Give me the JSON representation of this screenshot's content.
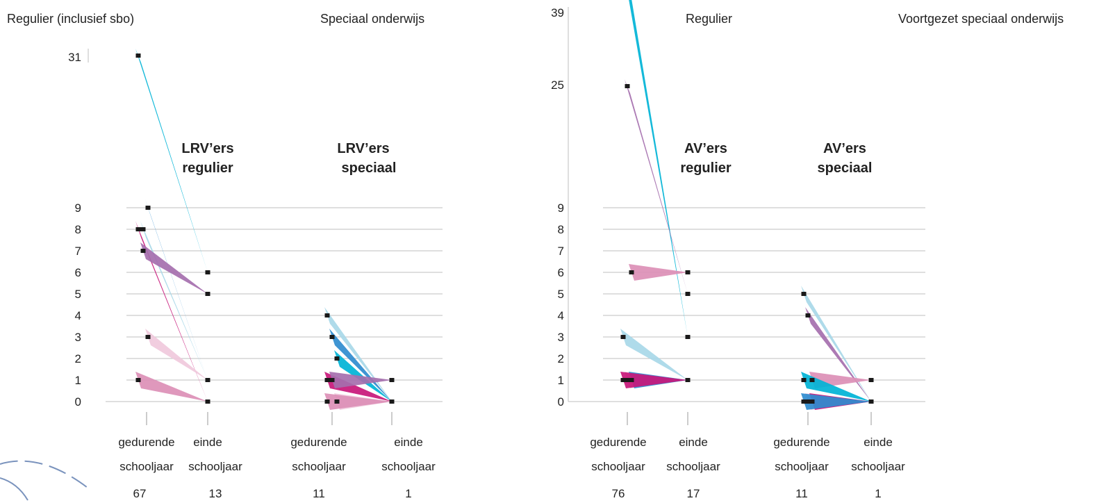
{
  "colors": {
    "cyan": "#00b3d6",
    "blue": "#2f8ccf",
    "magenta": "#c8177a",
    "light_blue": "#a8d8e8",
    "purple": "#a56fae",
    "pink": "#dc8fb6",
    "light_pink": "#f0c9dc",
    "grid": "#bfbfbf",
    "marker": "#1a1a1a",
    "decor": "#7a93bd"
  },
  "chart_data": [
    {
      "type": "line",
      "sections": [
        "Regulier (inclusief sbo)",
        "Speciaal onderwijs"
      ],
      "groups": [
        {
          "title_line1": "LRV’ers",
          "title_line2": "regulier"
        },
        {
          "title_line1": "LRV’ers",
          "title_line2": "speciaal"
        }
      ],
      "categories": [
        {
          "line1": "gedurende",
          "line2": "schooljaar",
          "count": "67"
        },
        {
          "line1": "einde",
          "line2": "schooljaar",
          "count": "13"
        },
        {
          "line1": "gedurende",
          "line2": "schooljaar",
          "count": "11"
        },
        {
          "line1": "einde",
          "line2": "schooljaar",
          "count": "1"
        }
      ],
      "y_ticks": [
        "0",
        "1",
        "2",
        "3",
        "4",
        "5",
        "6",
        "7",
        "8",
        "9",
        "31"
      ],
      "series": [
        {
          "color": "cyan",
          "group": 0,
          "from": 31,
          "to": 6
        },
        {
          "color": "light_blue",
          "group": 0,
          "from": 8,
          "to": 1
        },
        {
          "color": "blue",
          "group": 0,
          "from": 9,
          "to": 1
        },
        {
          "color": "magenta",
          "group": 0,
          "from": 8,
          "to": 0
        },
        {
          "color": "purple",
          "group": 0,
          "from": 7,
          "to": 5
        },
        {
          "color": "light_pink",
          "group": 0,
          "from": 3,
          "to": 1
        },
        {
          "color": "pink",
          "group": 0,
          "from": 1,
          "to": 0
        },
        {
          "color": "light_blue",
          "group": 1,
          "from": 4,
          "to": 0
        },
        {
          "color": "blue",
          "group": 1,
          "from": 3,
          "to": 0
        },
        {
          "color": "cyan",
          "group": 1,
          "from": 2,
          "to": 0
        },
        {
          "color": "magenta",
          "group": 1,
          "from": 1,
          "to": 0
        },
        {
          "color": "purple",
          "group": 1,
          "from": 1,
          "to": 1
        },
        {
          "color": "light_pink",
          "group": 1,
          "from": 0,
          "to": 0
        },
        {
          "color": "pink",
          "group": 1,
          "from": 0,
          "to": 0
        }
      ]
    },
    {
      "type": "line",
      "sections": [
        "Regulier",
        "Voortgezet speciaal onderwijs"
      ],
      "groups": [
        {
          "title_line1": "AV’ers",
          "title_line2": "regulier"
        },
        {
          "title_line1": "AV’ers",
          "title_line2": "speciaal"
        }
      ],
      "categories": [
        {
          "line1": "gedurende",
          "line2": "schooljaar",
          "count": "76"
        },
        {
          "line1": "einde",
          "line2": "schooljaar",
          "count": "17"
        },
        {
          "line1": "gedurende",
          "line2": "schooljaar",
          "count": "11"
        },
        {
          "line1": "einde",
          "line2": "schooljaar",
          "count": "1"
        }
      ],
      "y_ticks": [
        "0",
        "1",
        "2",
        "3",
        "4",
        "5",
        "6",
        "7",
        "8",
        "9",
        "25",
        "39"
      ],
      "series": [
        {
          "color": "cyan",
          "group": 0,
          "from": 39,
          "to": 3
        },
        {
          "color": "purple",
          "group": 0,
          "from": 25,
          "to": 5
        },
        {
          "color": "pink",
          "group": 0,
          "from": 6,
          "to": 6
        },
        {
          "color": "light_blue",
          "group": 0,
          "from": 3,
          "to": 1
        },
        {
          "color": "light_pink",
          "group": 0,
          "from": 1,
          "to": 1
        },
        {
          "color": "blue",
          "group": 0,
          "from": 1,
          "to": 1
        },
        {
          "color": "magenta",
          "group": 0,
          "from": 1,
          "to": 1
        },
        {
          "color": "light_blue",
          "group": 1,
          "from": 5,
          "to": 0
        },
        {
          "color": "purple",
          "group": 1,
          "from": 4,
          "to": 0
        },
        {
          "color": "pink",
          "group": 1,
          "from": 1,
          "to": 1
        },
        {
          "color": "cyan",
          "group": 1,
          "from": 1,
          "to": 0
        },
        {
          "color": "light_pink",
          "group": 1,
          "from": 0,
          "to": 0
        },
        {
          "color": "magenta",
          "group": 1,
          "from": 0,
          "to": 0
        },
        {
          "color": "blue",
          "group": 1,
          "from": 0,
          "to": 0
        }
      ]
    }
  ]
}
